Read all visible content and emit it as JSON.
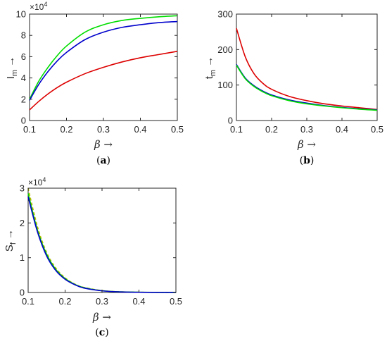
{
  "chart_data": [
    {
      "type": "line",
      "panel_label": "(a)",
      "ylabel": "I_m →",
      "xlabel": "β →",
      "xlim": [
        0.1,
        0.5
      ],
      "ylim": [
        0,
        10
      ],
      "y_multiplier": "×10^4",
      "xticks": [
        "0.1",
        "0.2",
        "0.3",
        "0.4",
        "0.5"
      ],
      "yticks": [
        "0",
        "2",
        "4",
        "6",
        "8",
        "10"
      ],
      "grid": false,
      "x": [
        0.1,
        0.125,
        0.15,
        0.175,
        0.2,
        0.25,
        0.3,
        0.35,
        0.4,
        0.45,
        0.5
      ],
      "series": [
        {
          "color": "#00dd00",
          "values": [
            2.0,
            3.7,
            5.0,
            6.1,
            7.0,
            8.3,
            9.0,
            9.4,
            9.6,
            9.75,
            9.85
          ]
        },
        {
          "color": "#0000cc",
          "values": [
            1.9,
            3.4,
            4.6,
            5.6,
            6.4,
            7.6,
            8.3,
            8.75,
            9.0,
            9.2,
            9.3
          ]
        },
        {
          "color": "#dd0000",
          "values": [
            1.0,
            1.8,
            2.5,
            3.1,
            3.6,
            4.4,
            5.0,
            5.5,
            5.9,
            6.2,
            6.5
          ]
        }
      ]
    },
    {
      "type": "line",
      "panel_label": "(b)",
      "ylabel": "t_m →",
      "xlabel": "β →",
      "xlim": [
        0.1,
        0.5
      ],
      "ylim": [
        0,
        300
      ],
      "xticks": [
        "0.1",
        "0.2",
        "0.3",
        "0.4",
        "0.5"
      ],
      "yticks": [
        "0",
        "100",
        "200",
        "300"
      ],
      "grid": false,
      "x": [
        0.1,
        0.125,
        0.15,
        0.175,
        0.2,
        0.25,
        0.3,
        0.35,
        0.4,
        0.45,
        0.5
      ],
      "series": [
        {
          "color": "#dd0000",
          "values": [
            260,
            180,
            132,
            105,
            88,
            68,
            56,
            47,
            41,
            36,
            31
          ]
        },
        {
          "color": "#0000cc",
          "values": [
            158,
            120,
            98,
            83,
            72,
            58,
            49,
            42,
            37,
            33,
            30
          ]
        },
        {
          "color": "#00dd00",
          "values": [
            156,
            118,
            96,
            81,
            70,
            56,
            47,
            41,
            36,
            32,
            29
          ]
        }
      ]
    },
    {
      "type": "line",
      "panel_label": "(c)",
      "ylabel": "S_f →",
      "xlabel": "β →",
      "xlim": [
        0.1,
        0.5
      ],
      "ylim": [
        0,
        3
      ],
      "y_multiplier": "×10^4",
      "xticks": [
        "0.1",
        "0.2",
        "0.3",
        "0.4",
        "0.5"
      ],
      "yticks": [
        "0",
        "1",
        "2",
        "3"
      ],
      "grid": false,
      "x": [
        0.1,
        0.125,
        0.15,
        0.175,
        0.2,
        0.225,
        0.25,
        0.3,
        0.35,
        0.4,
        0.45,
        0.5
      ],
      "series": [
        {
          "color": "#bbbb00",
          "dash": true,
          "values": [
            3.0,
            1.9,
            1.15,
            0.7,
            0.42,
            0.25,
            0.15,
            0.055,
            0.02,
            0.008,
            0.003,
            0.001
          ]
        },
        {
          "color": "#00cc00",
          "dash": false,
          "values": [
            2.85,
            1.8,
            1.1,
            0.66,
            0.4,
            0.24,
            0.14,
            0.05,
            0.018,
            0.007,
            0.003,
            0.001
          ]
        },
        {
          "color": "#0000cc",
          "dash": false,
          "values": [
            2.75,
            1.75,
            1.05,
            0.63,
            0.38,
            0.23,
            0.13,
            0.048,
            0.017,
            0.006,
            0.002,
            0.001
          ]
        }
      ]
    }
  ]
}
